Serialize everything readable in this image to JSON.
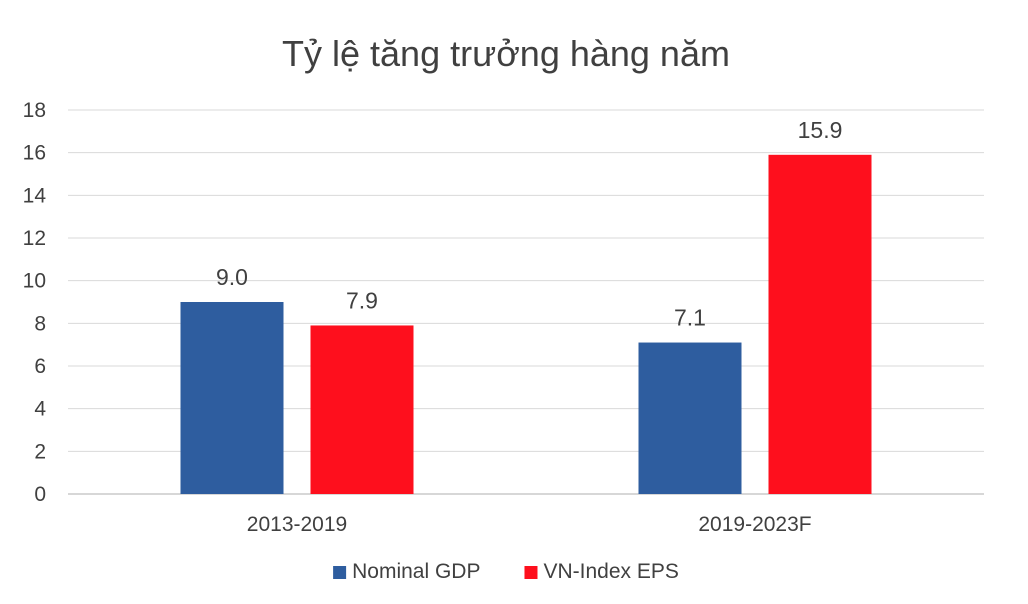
{
  "chart_data": {
    "type": "bar",
    "title": "Tỷ lệ tăng trưởng hàng năm",
    "categories": [
      "2013-2019",
      "2019-2023F"
    ],
    "series": [
      {
        "name": "Nominal GDP",
        "values": [
          9.0,
          7.1
        ],
        "labels": [
          "9.0",
          "7.1"
        ],
        "color": "#2e5d9f"
      },
      {
        "name": "VN-Index EPS",
        "values": [
          7.9,
          15.9
        ],
        "labels": [
          "7.9",
          "15.9"
        ],
        "color": "#fe0f1d"
      }
    ],
    "ylim": [
      0,
      18
    ],
    "yticks": [
      0,
      2,
      4,
      6,
      8,
      10,
      12,
      14,
      16,
      18
    ],
    "xlabel": "",
    "ylabel": "",
    "grid": true,
    "legend": "bottom"
  }
}
